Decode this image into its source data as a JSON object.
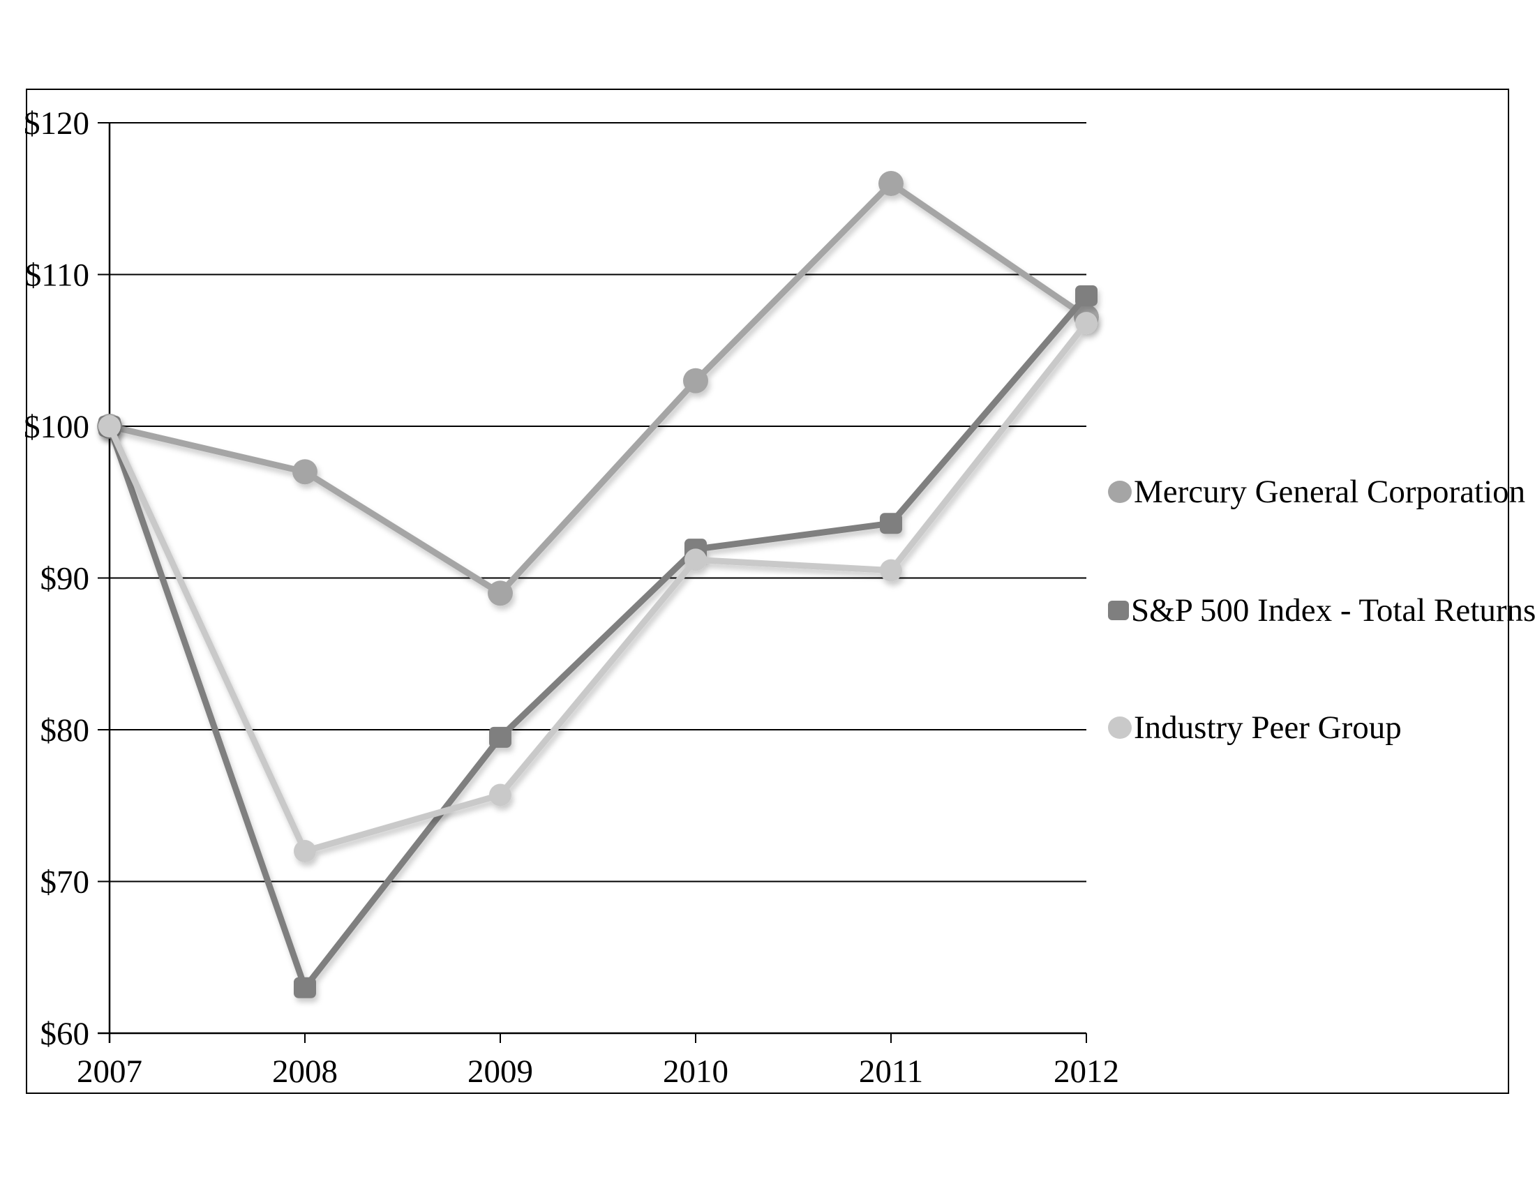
{
  "chart_data": {
    "type": "line",
    "title": "",
    "categories": [
      "2007",
      "2008",
      "2009",
      "2010",
      "2011",
      "2012"
    ],
    "series": [
      {
        "name": "Mercury General Corporation",
        "marker": "circle",
        "color": "#a5a5a5",
        "values": [
          100,
          97,
          89,
          103,
          116,
          107.2
        ]
      },
      {
        "name": "S&P 500 Index - Total Returns",
        "marker": "square",
        "color": "#7f7f7f",
        "values": [
          100,
          63,
          79.5,
          91.9,
          93.6,
          108.6
        ]
      },
      {
        "name": "Industry Peer Group",
        "marker": "circle",
        "color": "#c9c9c9",
        "values": [
          100,
          72,
          75.7,
          91.2,
          90.5,
          106.8
        ]
      }
    ],
    "ylim": [
      60,
      120
    ],
    "y_tick_values": [
      60,
      70,
      80,
      90,
      100,
      110,
      120
    ],
    "y_tick_labels": [
      "$60",
      "$70",
      "$80",
      "$90",
      "$100",
      "$110",
      "$120"
    ],
    "grid": "horizontal",
    "legend_position": "right",
    "axis_color": "#000000",
    "plot_background": "#ffffff"
  }
}
